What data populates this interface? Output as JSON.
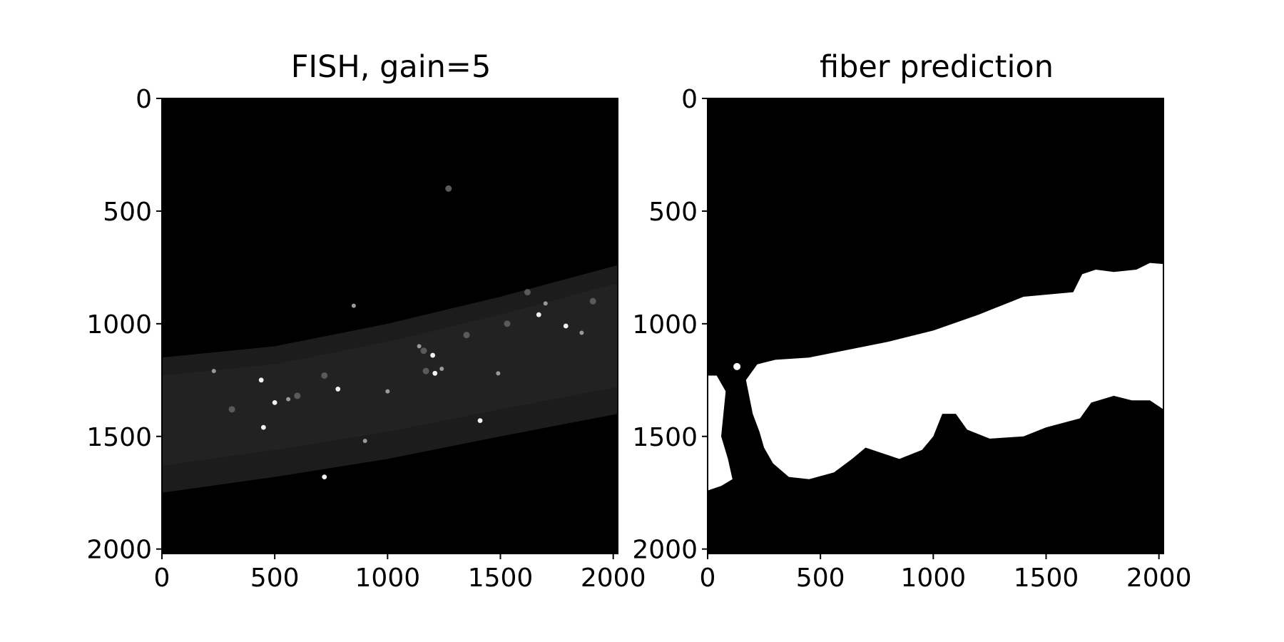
{
  "chart_data": [
    {
      "type": "image",
      "title": "FISH, gain=5",
      "colormap": "gray",
      "xlim": [
        0,
        2020
      ],
      "ylim": [
        2020,
        0
      ],
      "x_ticks": [
        0,
        500,
        1000,
        1500,
        2000
      ],
      "y_ticks": [
        0,
        500,
        1000,
        1500,
        2000
      ],
      "x_tick_labels": [
        "0",
        "500",
        "1000",
        "1500",
        "2000"
      ],
      "y_tick_labels": [
        "0",
        "500",
        "1000",
        "1500",
        "2000"
      ],
      "grid": false,
      "fiber_band": [
        [
          0,
          1150,
          1750
        ],
        [
          500,
          1100,
          1680
        ],
        [
          1000,
          1000,
          1600
        ],
        [
          1500,
          880,
          1500
        ],
        [
          2020,
          740,
          1400
        ]
      ],
      "spots": [
        [
          500,
          1350
        ],
        [
          560,
          1335
        ],
        [
          600,
          1320
        ],
        [
          440,
          1250
        ],
        [
          230,
          1210
        ],
        [
          310,
          1380
        ],
        [
          450,
          1460
        ],
        [
          900,
          1520
        ],
        [
          720,
          1230
        ],
        [
          780,
          1290
        ],
        [
          1140,
          1100
        ],
        [
          1160,
          1120
        ],
        [
          1200,
          1140
        ],
        [
          1240,
          1200
        ],
        [
          1170,
          1210
        ],
        [
          1210,
          1220
        ],
        [
          1490,
          1220
        ],
        [
          1530,
          1000
        ],
        [
          1670,
          960
        ],
        [
          1700,
          910
        ],
        [
          1620,
          860
        ],
        [
          1790,
          1010
        ],
        [
          1860,
          1040
        ],
        [
          1910,
          900
        ],
        [
          1410,
          1430
        ],
        [
          850,
          920
        ],
        [
          1270,
          400
        ],
        [
          720,
          1680
        ],
        [
          1000,
          1300
        ],
        [
          1350,
          1050
        ]
      ]
    },
    {
      "type": "image",
      "title": "fiber prediction",
      "colormap": "gray",
      "xlim": [
        0,
        2020
      ],
      "ylim": [
        2020,
        0
      ],
      "x_ticks": [
        0,
        500,
        1000,
        1500,
        2000
      ],
      "y_ticks": [
        0,
        500,
        1000,
        1500,
        2000
      ],
      "x_tick_labels": [
        "0",
        "500",
        "1000",
        "1500",
        "2000"
      ],
      "y_tick_labels": [
        "0",
        "500",
        "1000",
        "1500",
        "2000"
      ],
      "grid": false,
      "mask_main": [
        [
          170,
          1250
        ],
        [
          220,
          1180
        ],
        [
          300,
          1160
        ],
        [
          450,
          1150
        ],
        [
          600,
          1120
        ],
        [
          800,
          1080
        ],
        [
          1000,
          1030
        ],
        [
          1200,
          960
        ],
        [
          1400,
          880
        ],
        [
          1620,
          860
        ],
        [
          1660,
          780
        ],
        [
          1720,
          760
        ],
        [
          1800,
          770
        ],
        [
          1900,
          760
        ],
        [
          1960,
          730
        ],
        [
          2020,
          735
        ],
        [
          2020,
          1380
        ],
        [
          1960,
          1340
        ],
        [
          1880,
          1340
        ],
        [
          1800,
          1320
        ],
        [
          1700,
          1350
        ],
        [
          1650,
          1420
        ],
        [
          1500,
          1460
        ],
        [
          1400,
          1500
        ],
        [
          1250,
          1510
        ],
        [
          1150,
          1470
        ],
        [
          1100,
          1400
        ],
        [
          1040,
          1400
        ],
        [
          1000,
          1500
        ],
        [
          950,
          1560
        ],
        [
          850,
          1600
        ],
        [
          700,
          1550
        ],
        [
          640,
          1600
        ],
        [
          560,
          1660
        ],
        [
          450,
          1690
        ],
        [
          360,
          1680
        ],
        [
          290,
          1620
        ],
        [
          250,
          1550
        ],
        [
          230,
          1480
        ],
        [
          200,
          1400
        ]
      ],
      "mask_left": [
        [
          0,
          1230
        ],
        [
          40,
          1230
        ],
        [
          80,
          1300
        ],
        [
          70,
          1400
        ],
        [
          60,
          1500
        ],
        [
          90,
          1600
        ],
        [
          110,
          1690
        ],
        [
          60,
          1720
        ],
        [
          0,
          1740
        ]
      ],
      "mask_dot": [
        130,
        1190
      ]
    }
  ]
}
